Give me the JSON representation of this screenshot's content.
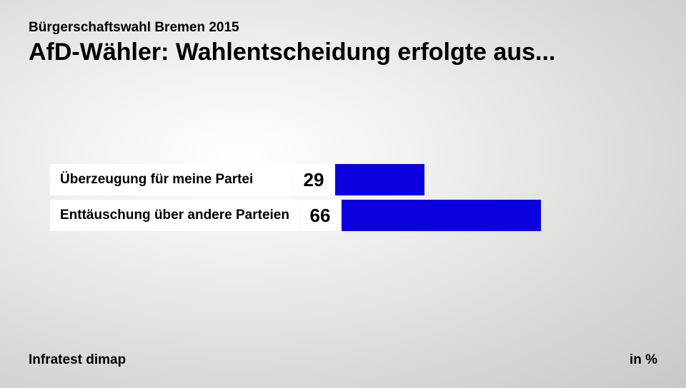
{
  "header": {
    "subtitle": "Bürgerschaftswahl Bremen 2015",
    "title": "AfD-Wähler: Wahlentscheidung erfolgte aus..."
  },
  "chart": {
    "type": "bar",
    "bar_color": "#0a00e0",
    "label_bg": "#ffffff",
    "value_bg": "#ffffff",
    "max_value": 100,
    "label_fontsize": 19,
    "value_fontsize": 26,
    "bars": [
      {
        "label": "Überzeugung für meine Partei",
        "value": 29
      },
      {
        "label": "Enttäuschung über andere Parteien",
        "value": 66
      }
    ]
  },
  "footer": {
    "source": "Infratest dimap",
    "unit": "in %"
  }
}
